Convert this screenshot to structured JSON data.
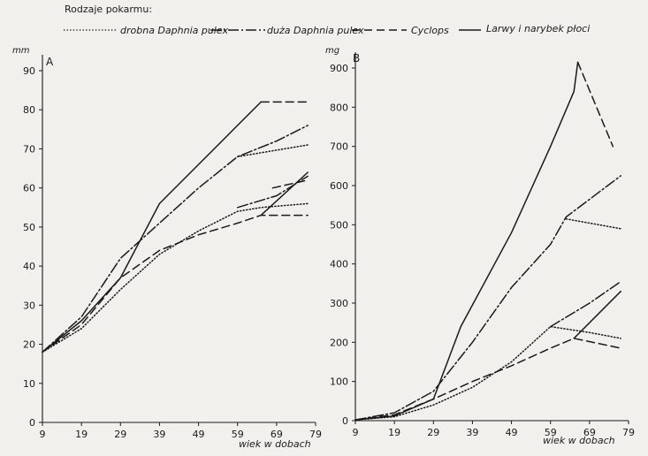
{
  "legend": {
    "title": "Rodzaje pokarmu:",
    "items": [
      {
        "label": "drobna Daphnia pulex",
        "dash": "1.2 2.4",
        "color": "#1a1a1a"
      },
      {
        "label": "duża Daphnia pulex",
        "dash": "12 3 2 3",
        "color": "#1a1a1a"
      },
      {
        "label": "Cyclops",
        "dash": "9 5",
        "color": "#1a1a1a"
      },
      {
        "label": "Larwy i narybek płoci",
        "dash": "",
        "color": "#1a1a1a"
      }
    ]
  },
  "chart_data": [
    {
      "type": "line",
      "panel": "A",
      "ylabel": "mm",
      "xlabel": "wiek w dobach",
      "xlim": [
        9,
        79
      ],
      "ylim": [
        0,
        90
      ],
      "xticks": [
        9,
        19,
        29,
        39,
        49,
        59,
        69,
        79
      ],
      "yticks": [
        0,
        10,
        20,
        30,
        40,
        50,
        60,
        70,
        80,
        90
      ],
      "grid": false,
      "series": [
        {
          "name": "drobna Daphnia pulex",
          "points": [
            [
              9,
              18
            ],
            [
              19,
              24
            ],
            [
              29,
              34
            ],
            [
              39,
              43
            ],
            [
              49,
              49
            ],
            [
              59,
              54
            ],
            [
              65,
              55
            ],
            [
              77,
              56
            ]
          ]
        },
        {
          "name": "drobna Daphnia pulex",
          "points": [
            [
              59,
              68
            ],
            [
              77,
              71
            ]
          ]
        },
        {
          "name": "duża Daphnia pulex",
          "points": [
            [
              9,
              18
            ],
            [
              19,
              27
            ],
            [
              29,
              42
            ],
            [
              39,
              51
            ],
            [
              49,
              60
            ],
            [
              59,
              68
            ],
            [
              69,
              72
            ],
            [
              77,
              76
            ]
          ]
        },
        {
          "name": "duża Daphnia pulex",
          "points": [
            [
              59,
              55
            ],
            [
              69,
              58
            ],
            [
              77,
              63
            ]
          ]
        },
        {
          "name": "Cyclops",
          "points": [
            [
              9,
              18
            ],
            [
              19,
              25
            ],
            [
              29,
              37
            ],
            [
              39,
              44
            ],
            [
              49,
              48
            ],
            [
              59,
              51
            ],
            [
              65,
              53
            ],
            [
              77,
              53
            ]
          ]
        },
        {
          "name": "Cyclops",
          "points": [
            [
              65,
              82
            ],
            [
              77,
              82
            ]
          ]
        },
        {
          "name": "Cyclops",
          "points": [
            [
              68,
              60
            ],
            [
              77,
              62
            ]
          ]
        },
        {
          "name": "Larwy i narybek płoci",
          "points": [
            [
              9,
              18
            ],
            [
              19,
              26
            ],
            [
              29,
              37
            ],
            [
              39,
              56
            ],
            [
              49,
              66
            ],
            [
              59,
              76
            ],
            [
              65,
              82
            ]
          ]
        },
        {
          "name": "Larwy i narybek płoci",
          "points": [
            [
              65,
              53
            ],
            [
              77,
              64
            ]
          ]
        }
      ]
    },
    {
      "type": "line",
      "panel": "B",
      "ylabel": "mg",
      "xlabel": "wiek w dobach",
      "xlim": [
        9,
        79
      ],
      "ylim": [
        0,
        900
      ],
      "xticks": [
        9,
        19,
        29,
        39,
        49,
        59,
        69,
        79
      ],
      "yticks": [
        0,
        100,
        200,
        300,
        400,
        500,
        600,
        700,
        800,
        900
      ],
      "grid": false,
      "series": [
        {
          "name": "drobna Daphnia pulex",
          "points": [
            [
              9,
              2
            ],
            [
              19,
              10
            ],
            [
              29,
              40
            ],
            [
              39,
              85
            ],
            [
              49,
              150
            ],
            [
              59,
              240
            ],
            [
              69,
              225
            ],
            [
              77,
              210
            ]
          ]
        },
        {
          "name": "drobna Daphnia pulex",
          "points": [
            [
              63,
              515
            ],
            [
              77,
              490
            ]
          ]
        },
        {
          "name": "duża Daphnia pulex",
          "points": [
            [
              9,
              2
            ],
            [
              19,
              20
            ],
            [
              29,
              75
            ],
            [
              39,
              200
            ],
            [
              49,
              340
            ],
            [
              59,
              450
            ],
            [
              63,
              520
            ],
            [
              77,
              625
            ]
          ]
        },
        {
          "name": "duża Daphnia pulex",
          "points": [
            [
              59,
              240
            ],
            [
              69,
              300
            ],
            [
              77,
              355
            ]
          ]
        },
        {
          "name": "Cyclops",
          "points": [
            [
              9,
              2
            ],
            [
              19,
              15
            ],
            [
              29,
              55
            ],
            [
              39,
              100
            ],
            [
              49,
              140
            ],
            [
              59,
              185
            ],
            [
              65,
              210
            ],
            [
              77,
              185
            ]
          ]
        },
        {
          "name": "Cyclops",
          "points": [
            [
              66,
              915
            ],
            [
              75,
              700
            ]
          ]
        },
        {
          "name": "Larwy i narybek płoci",
          "points": [
            [
              9,
              2
            ],
            [
              19,
              12
            ],
            [
              29,
              55
            ],
            [
              36,
              240
            ],
            [
              49,
              480
            ],
            [
              59,
              700
            ],
            [
              65,
              840
            ],
            [
              66,
              915
            ]
          ]
        },
        {
          "name": "Larwy i narybek płoci",
          "points": [
            [
              65,
              210
            ],
            [
              77,
              330
            ]
          ]
        }
      ]
    }
  ]
}
